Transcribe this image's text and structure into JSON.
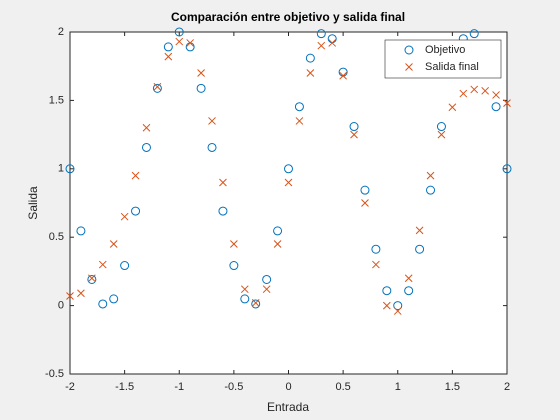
{
  "chart_data": {
    "type": "scatter",
    "title": "Comparación entre objetivo y salida final",
    "xlabel": "Entrada",
    "ylabel": "Salida",
    "x": [
      -2,
      -1.9,
      -1.8,
      -1.7,
      -1.6,
      -1.5,
      -1.4,
      -1.3,
      -1.2,
      -1.1,
      -1,
      -0.9,
      -0.8,
      -0.7,
      -0.6,
      -0.5,
      -0.4,
      -0.3,
      -0.2,
      -0.1,
      0,
      0.1,
      0.2,
      0.3,
      0.4,
      0.5,
      0.6,
      0.7,
      0.8,
      0.9,
      1,
      1.1,
      1.2,
      1.3,
      1.4,
      1.5,
      1.6,
      1.7,
      1.8,
      1.9,
      2
    ],
    "series": [
      {
        "name": "Objetivo",
        "color": "#0072bd",
        "marker": "o",
        "values": [
          1,
          0.546,
          0.191,
          0.012,
          0.049,
          0.293,
          0.691,
          1.156,
          1.588,
          1.891,
          2,
          1.891,
          1.588,
          1.156,
          0.691,
          0.293,
          0.049,
          0.012,
          0.191,
          0.546,
          1,
          1.454,
          1.809,
          1.988,
          1.951,
          1.707,
          1.309,
          0.844,
          0.412,
          0.109,
          0,
          0.109,
          0.412,
          0.844,
          1.309,
          1.707,
          1.951,
          1.988,
          1.809,
          1.454,
          1
        ]
      },
      {
        "name": "Salida final",
        "color": "#d95319",
        "marker": "x",
        "values": [
          0.07,
          0.09,
          0.2,
          0.3,
          0.45,
          0.65,
          0.95,
          1.3,
          1.6,
          1.82,
          1.93,
          1.92,
          1.7,
          1.35,
          0.9,
          0.45,
          0.12,
          0.02,
          0.12,
          0.45,
          0.9,
          1.35,
          1.7,
          1.9,
          1.92,
          1.68,
          1.25,
          0.75,
          0.3,
          0,
          -0.04,
          0.2,
          0.55,
          0.95,
          1.25,
          1.45,
          1.55,
          1.58,
          1.57,
          1.54,
          1.48
        ]
      }
    ],
    "xlim": [
      -2,
      2
    ],
    "xticks": [
      -2,
      -1.5,
      -1,
      -0.5,
      0,
      0.5,
      1,
      1.5,
      2
    ],
    "ylim": [
      -0.5,
      2
    ],
    "yticks": [
      -0.5,
      0,
      0.5,
      1,
      1.5,
      2
    ],
    "legend": "northeast"
  }
}
